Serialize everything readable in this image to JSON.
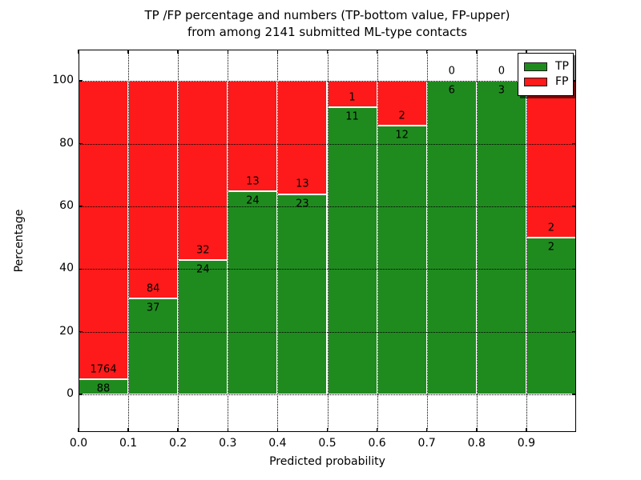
{
  "title": {
    "line1": "TP /FP percentage and numbers (TP-bottom value, FP-upper)",
    "line2": "from among 2141 submitted ML-type contacts"
  },
  "chart_data": {
    "type": "bar",
    "stacked": true,
    "normalized_to_percent": true,
    "title": "TP /FP percentage and numbers (TP-bottom value, FP-upper)\nfrom among 2141 submitted ML-type contacts",
    "xlabel": "Predicted probability",
    "ylabel": "Percentage",
    "xlim": [
      0.0,
      1.0
    ],
    "ylim": [
      -12,
      110
    ],
    "xticks": [
      0.0,
      0.1,
      0.2,
      0.3,
      0.4,
      0.5,
      0.6,
      0.7,
      0.8,
      0.9
    ],
    "yticks": [
      0,
      20,
      40,
      60,
      80,
      100
    ],
    "grid": "dotted",
    "bin_width": 0.1,
    "bin_starts": [
      0.0,
      0.1,
      0.2,
      0.3,
      0.4,
      0.5,
      0.6,
      0.7,
      0.8,
      0.9
    ],
    "series": [
      {
        "name": "TP",
        "color": "#1f8b1f",
        "counts": [
          88,
          37,
          24,
          24,
          23,
          11,
          12,
          6,
          3,
          2
        ]
      },
      {
        "name": "FP",
        "color": "#fe1a1a",
        "counts": [
          1764,
          84,
          32,
          13,
          13,
          1,
          2,
          0,
          0,
          2
        ]
      }
    ],
    "tp_percent_heights": [
      4.8,
      30.6,
      42.9,
      64.9,
      63.9,
      91.7,
      85.7,
      100.0,
      100.0,
      50.0
    ],
    "bar_edge_color": "#ffffff",
    "legend": {
      "position": "upper right",
      "entries": [
        "TP",
        "FP"
      ]
    }
  }
}
